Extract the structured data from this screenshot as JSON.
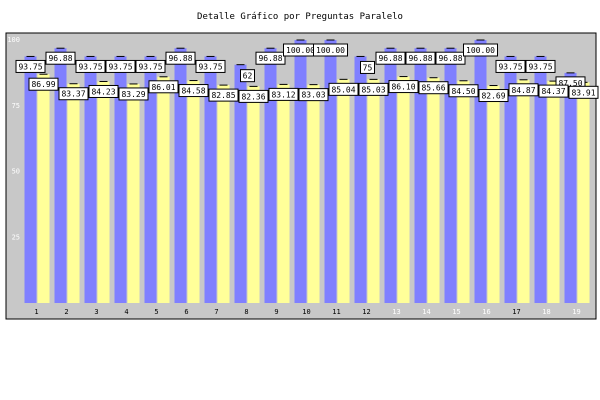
{
  "chart_data": {
    "type": "bar",
    "title": "Detalle Gráfico por Preguntas Paralelo",
    "xlabel": "",
    "ylabel": "",
    "ylim": [
      0,
      100
    ],
    "yticks": [
      25,
      50,
      75,
      100
    ],
    "categories": [
      "1",
      "2",
      "3",
      "4",
      "5",
      "6",
      "7",
      "8",
      "9",
      "10",
      "11",
      "12",
      "13",
      "14",
      "15",
      "16",
      "17",
      "18",
      "19"
    ],
    "category_label_colors": [
      "#000000",
      "#000000",
      "#000000",
      "#000000",
      "#000000",
      "#000000",
      "#000000",
      "#000000",
      "#000000",
      "#000000",
      "#000000",
      "#000000",
      "#ffffff",
      "#ffffff",
      "#ffffff",
      "#ffffff",
      "#000000",
      "#ffffff",
      "#ffffff"
    ],
    "series": [
      {
        "color": "#8080ff",
        "values": [
          93.75,
          96.88,
          93.75,
          93.75,
          93.75,
          96.88,
          93.75,
          90.62,
          96.88,
          100.0,
          100.0,
          93.75,
          96.88,
          96.88,
          96.88,
          100.0,
          93.75,
          93.75,
          87.5
        ],
        "labels": [
          "93.75",
          "96.88",
          "93.75",
          "93.75",
          "93.75",
          "96.88",
          "93.75",
          "",
          "96.88",
          "100.00",
          "100.00",
          "",
          "96.88",
          "96.88",
          "96.88",
          "100.00",
          "93.75",
          "93.75",
          "87.50"
        ]
      },
      {
        "color": "#ffff99",
        "values": [
          86.99,
          83.37,
          84.23,
          83.29,
          86.01,
          84.58,
          82.85,
          82.36,
          83.12,
          83.03,
          85.04,
          85.03,
          86.1,
          85.66,
          84.5,
          82.69,
          84.87,
          84.37,
          83.91
        ],
        "labels": [
          "86.99",
          "83.37",
          "84.23",
          "83.29",
          "86.01",
          "84.58",
          "82.85",
          "82.36",
          "83.12",
          "83.03",
          "85.04",
          "85.03",
          "86.10",
          "85.66",
          "84.50",
          "82.69",
          "84.87",
          "84.37",
          "83.91"
        ]
      }
    ],
    "partial_labels": [
      {
        "text": "62",
        "category": "8"
      },
      {
        "text": "75",
        "category": "12"
      }
    ],
    "grid": false,
    "legend": "none"
  }
}
